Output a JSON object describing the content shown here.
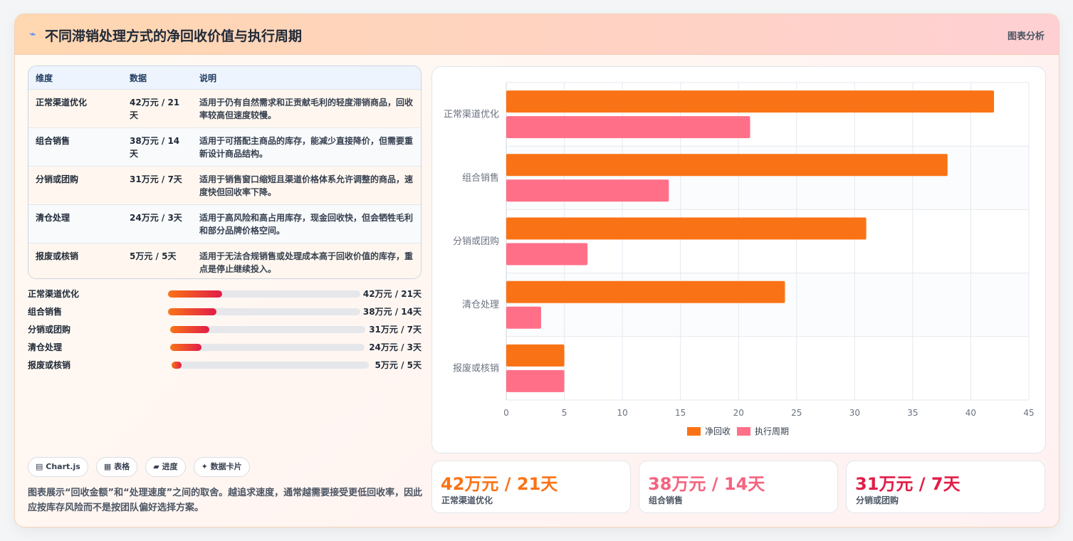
{
  "header": {
    "icon": "chart-line-icon",
    "title": "不同滞销处理方式的净回收价值与执行周期",
    "tag": "图表分析"
  },
  "table": {
    "headers": [
      "维度",
      "数据",
      "说明"
    ],
    "rows": [
      {
        "dim": "正常渠道优化",
        "data": "42万元 / 21天",
        "note": "适用于仍有自然需求和正贡献毛利的轻度滞销商品，回收率较高但速度较慢。"
      },
      {
        "dim": "组合销售",
        "data": "38万元 / 14天",
        "note": "适用于可搭配主商品的库存，能减少直接降价，但需要重新设计商品结构。"
      },
      {
        "dim": "分销或团购",
        "data": "31万元 / 7天",
        "note": "适用于销售窗口缩短且渠道价格体系允许调整的商品，速度快但回收率下降。"
      },
      {
        "dim": "清仓处理",
        "data": "24万元 / 3天",
        "note": "适用于高风险和高占用库存，现金回收快，但会牺牲毛利和部分品牌价格空间。"
      },
      {
        "dim": "报废或核销",
        "data": "5万元 / 5天",
        "note": "适用于无法合规销售或处理成本高于回收价值的库存，重点是停止继续投入。"
      }
    ]
  },
  "progress": [
    {
      "label": "正常渠道优化",
      "value": "42万元 / 21天",
      "fraction": 0.28
    },
    {
      "label": "组合销售",
      "value": "38万元 / 14天",
      "fraction": 0.25
    },
    {
      "label": "分销或团购",
      "value": "31万元 / 7天",
      "fraction": 0.2
    },
    {
      "label": "清仓处理",
      "value": "24万元 / 3天",
      "fraction": 0.16
    },
    {
      "label": "报废或核销",
      "value": "5万元 / 5天",
      "fraction": 0.05
    }
  ],
  "chips": [
    {
      "icon": "▤",
      "label": "Chart.js"
    },
    {
      "icon": "▦",
      "label": "表格"
    },
    {
      "icon": "▰",
      "label": "进度"
    },
    {
      "icon": "✦",
      "label": "数据卡片"
    }
  ],
  "description": "图表展示“回收金额”和“处理速度”之间的取舍。越追求速度，通常越需要接受更低回收率，因此应按库存风险而不是按团队偏好选择方案。",
  "chart_data": {
    "type": "bar",
    "orientation": "horizontal",
    "categories": [
      "正常渠道优化",
      "组合销售",
      "分销或团购",
      "清仓处理",
      "报废或核销"
    ],
    "series": [
      {
        "name": "净回收",
        "values": [
          42,
          38,
          31,
          24,
          5
        ],
        "color": "#f97316"
      },
      {
        "name": "执行周期",
        "values": [
          21,
          14,
          7,
          3,
          5
        ],
        "color": "#ff7088"
      }
    ],
    "xlim": [
      0,
      45
    ],
    "xticks": [
      0,
      5,
      10,
      15,
      20,
      25,
      30,
      35,
      40,
      45
    ],
    "grid": true,
    "legend": "bottom"
  },
  "stats": [
    {
      "value": "42万元 / 21天",
      "label": "正常渠道优化",
      "color": "#f97316"
    },
    {
      "value": "38万元 / 14天",
      "label": "组合销售",
      "color": "#f4647f"
    },
    {
      "value": "31万元 / 7天",
      "label": "分销或团购",
      "color": "#e11d48"
    }
  ]
}
